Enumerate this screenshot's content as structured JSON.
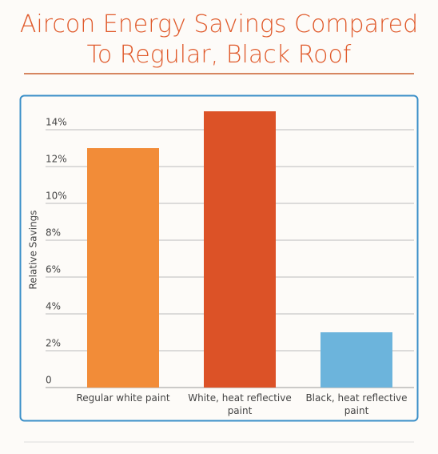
{
  "chart_data": {
    "type": "bar",
    "title": "Aircon Energy Savings Compared To Regular, Black Roof",
    "y_label": "Relative Savings",
    "categories": [
      "Regular white paint",
      "White, heat reflective paint",
      "Black, heat reflective paint"
    ],
    "values": [
      13,
      15,
      3
    ],
    "colors": [
      "#f28c38",
      "#dc5227",
      "#6cb4dc"
    ],
    "ylim": [
      0,
      15.5
    ],
    "yticks": [
      0,
      {
        "value": 2,
        "label": "2%"
      },
      {
        "value": 4,
        "label": "4%"
      },
      {
        "value": 6,
        "label": "6%"
      },
      {
        "value": 8,
        "label": "8%"
      },
      {
        "value": 10,
        "label": "10%"
      },
      {
        "value": 12,
        "label": "12%"
      },
      {
        "value": 14,
        "label": "14%"
      }
    ],
    "grid": true
  }
}
